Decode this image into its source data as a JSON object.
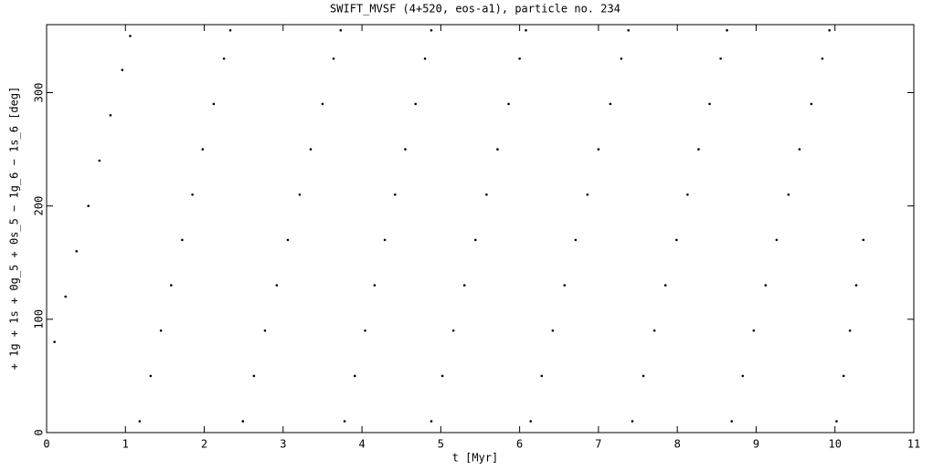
{
  "chart_data": {
    "type": "scatter",
    "title": "SWIFT_MVSF (4+520, eos-a1), particle no. 234",
    "xlabel": "t [Myr]",
    "ylabel": "+ 1g + 1s + 0g_5 + 0s_5 − 1g_6 − 1s_6 [deg]",
    "color": "#000000",
    "xlim": [
      0,
      11
    ],
    "xticks": [
      0,
      1,
      2,
      3,
      4,
      5,
      6,
      7,
      8,
      9,
      10,
      11
    ],
    "ylim": [
      0,
      360
    ],
    "yticks": [
      0,
      100,
      200,
      300
    ],
    "x": [
      0.1,
      0.24,
      0.38,
      0.53,
      0.67,
      0.81,
      0.96,
      1.06,
      1.18,
      1.32,
      1.45,
      1.58,
      1.72,
      1.85,
      1.98,
      2.12,
      2.25,
      2.33,
      2.49,
      2.63,
      2.77,
      2.92,
      3.06,
      3.21,
      3.35,
      3.5,
      3.64,
      3.73,
      3.78,
      3.91,
      4.04,
      4.16,
      4.29,
      4.42,
      4.55,
      4.68,
      4.8,
      4.88,
      4.88,
      5.02,
      5.16,
      5.3,
      5.44,
      5.58,
      5.72,
      5.86,
      6.0,
      6.08,
      6.14,
      6.28,
      6.42,
      6.57,
      6.71,
      6.86,
      7.0,
      7.15,
      7.29,
      7.38,
      7.43,
      7.57,
      7.71,
      7.85,
      7.99,
      8.13,
      8.27,
      8.41,
      8.55,
      8.63,
      8.69,
      8.83,
      8.97,
      9.12,
      9.26,
      9.41,
      9.55,
      9.7,
      9.84,
      9.93,
      10.02,
      10.11,
      10.19,
      10.27,
      10.36
    ],
    "y": [
      80,
      120,
      160,
      200,
      240,
      280,
      320,
      350,
      10,
      50,
      90,
      130,
      170,
      210,
      250,
      290,
      330,
      355,
      10,
      50,
      90,
      130,
      170,
      210,
      250,
      290,
      330,
      355,
      10,
      50,
      90,
      130,
      170,
      210,
      250,
      290,
      330,
      355,
      10,
      50,
      90,
      130,
      170,
      210,
      250,
      290,
      330,
      355,
      10,
      50,
      90,
      130,
      170,
      210,
      250,
      290,
      330,
      355,
      10,
      50,
      90,
      130,
      170,
      210,
      250,
      290,
      330,
      355,
      10,
      50,
      90,
      130,
      170,
      210,
      250,
      290,
      330,
      355,
      10,
      50,
      90,
      130,
      170
    ]
  }
}
